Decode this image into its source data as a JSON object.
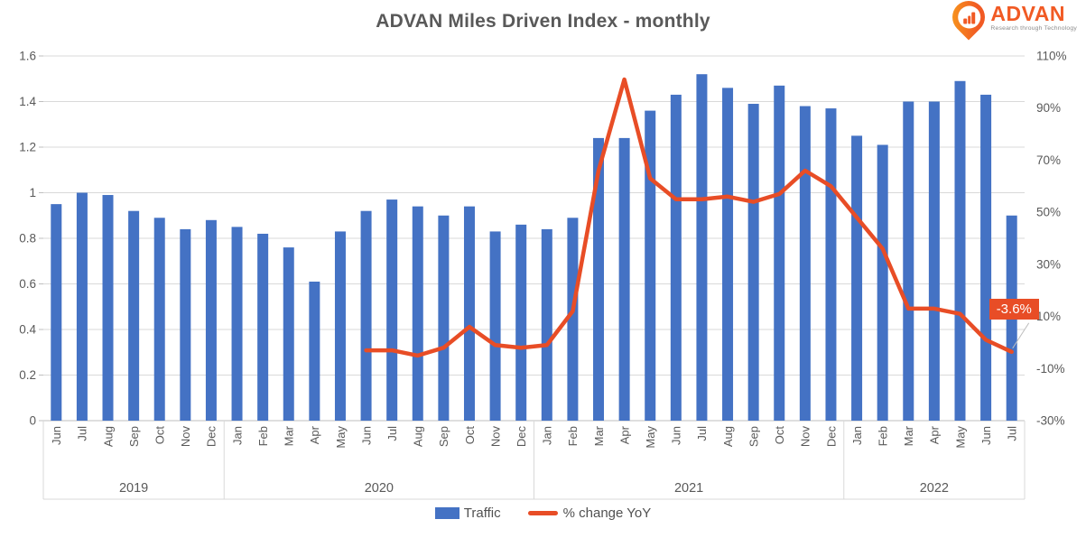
{
  "logo": {
    "brand": "ADVAN",
    "tagline": "Research through Technology",
    "icon": "map-pin-bar-chart-icon",
    "brand_color": "#F15A24"
  },
  "legend": [
    {
      "label": "Traffic",
      "swatch": "bar",
      "color": "#4472C4"
    },
    {
      "label": "% change YoY",
      "swatch": "line",
      "color": "#E84D26"
    }
  ],
  "chart_data": {
    "type": "combo_bar_line",
    "title": "ADVAN Miles Driven Index - monthly",
    "grid": true,
    "legend_position": "bottom",
    "months": [
      "Jun",
      "Jul",
      "Aug",
      "Sep",
      "Oct",
      "Nov",
      "Dec",
      "Jan",
      "Feb",
      "Mar",
      "Apr",
      "May",
      "Jun",
      "Jul",
      "Aug",
      "Sep",
      "Oct",
      "Nov",
      "Dec",
      "Jan",
      "Feb",
      "Mar",
      "Apr",
      "May",
      "Jun",
      "Jul",
      "Aug",
      "Sep",
      "Oct",
      "Nov",
      "Dec",
      "Jan",
      "Feb",
      "Mar",
      "Apr",
      "May",
      "Jun",
      "Jul"
    ],
    "year_groups": [
      {
        "label": "2019",
        "count": 7
      },
      {
        "label": "2020",
        "count": 12
      },
      {
        "label": "2021",
        "count": 12
      },
      {
        "label": "2022",
        "count": 7
      }
    ],
    "series": [
      {
        "name": "Traffic",
        "type": "bar",
        "axis": "left",
        "color": "#4472C4",
        "values": [
          0.95,
          1.0,
          0.99,
          0.92,
          0.89,
          0.84,
          0.88,
          0.85,
          0.82,
          0.76,
          0.61,
          0.83,
          0.92,
          0.97,
          0.94,
          0.9,
          0.94,
          0.83,
          0.86,
          0.84,
          0.89,
          1.24,
          1.24,
          1.36,
          1.43,
          1.52,
          1.46,
          1.39,
          1.47,
          1.38,
          1.37,
          1.25,
          1.21,
          1.4,
          1.4,
          1.49,
          1.43,
          0.9
        ]
      },
      {
        "name": "% change YoY",
        "type": "line",
        "axis": "right",
        "color": "#E84D26",
        "values": [
          null,
          null,
          null,
          null,
          null,
          null,
          null,
          null,
          null,
          null,
          null,
          null,
          -3,
          -3,
          -5,
          -2,
          6,
          -1,
          -2,
          -1,
          12,
          66,
          101,
          63,
          55,
          55,
          56,
          54,
          57,
          66,
          60,
          48,
          36,
          13,
          13,
          11,
          1,
          -3.6
        ]
      }
    ],
    "left_axis": {
      "min": 0,
      "max": 1.6,
      "ticks": [
        {
          "v": 0,
          "label": "0"
        },
        {
          "v": 0.2,
          "label": "0.2"
        },
        {
          "v": 0.4,
          "label": "0.4"
        },
        {
          "v": 0.6,
          "label": "0.6"
        },
        {
          "v": 0.8,
          "label": "0.8"
        },
        {
          "v": 1,
          "label": "1"
        },
        {
          "v": 1.2,
          "label": "1.2"
        },
        {
          "v": 1.4,
          "label": "1.4"
        },
        {
          "v": 1.6,
          "label": "1.6"
        }
      ]
    },
    "right_axis": {
      "min": -30,
      "max": 110,
      "ticks": [
        {
          "v": 110,
          "label": "110%"
        },
        {
          "v": 90,
          "label": "90%"
        },
        {
          "v": 70,
          "label": "70%"
        },
        {
          "v": 50,
          "label": "50%"
        },
        {
          "v": 30,
          "label": "30%"
        },
        {
          "v": 10,
          "label": "10%"
        },
        {
          "v": -10,
          "label": "-10%"
        },
        {
          "v": -30,
          "label": "-30%"
        }
      ]
    },
    "data_label": {
      "text": "-3.6%",
      "series": "% change YoY",
      "point": "Jul 2022",
      "bg": "#E84D26"
    },
    "colors": {
      "grid": "#D9D9D9",
      "axis_line": "#BFBFBF",
      "axis_text": "#595959"
    }
  }
}
